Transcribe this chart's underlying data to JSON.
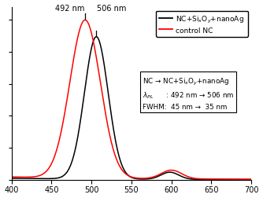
{
  "xlim": [
    400,
    700
  ],
  "ylim": [
    0,
    1.08
  ],
  "xticks": [
    400,
    450,
    500,
    550,
    600,
    650,
    700
  ],
  "peak_nc": 492,
  "fwhm_nc": 45,
  "peak_nanoag": 506,
  "fwhm_nanoag": 35,
  "color_nc": "#ff0000",
  "color_nanoag": "#000000",
  "legend1_label": "NC+Si$_x$O$_y$+nanoAg",
  "legend2_label": "control NC",
  "annotation_line1": "NC → NC+Si$_x$O$_y$+nanoAg",
  "annotation_line2": "$\\lambda_{PL}$      : 492 nm → 506 nm",
  "annotation_line3": "FWHM:  45 nm →  35 nm",
  "label_492": "492 nm",
  "label_506": "506 nm",
  "background_color": "#ffffff",
  "amp_nc": 1.0,
  "amp_nanoag": 0.9,
  "side_wl_nc": 600,
  "side_amp_nc": 0.055,
  "side_fwhm_nc": 30,
  "side_wl_nanoag": 598,
  "side_amp_nanoag": 0.045,
  "side_fwhm_nanoag": 26,
  "bg_amp": 0.018,
  "bg_decay": 180
}
